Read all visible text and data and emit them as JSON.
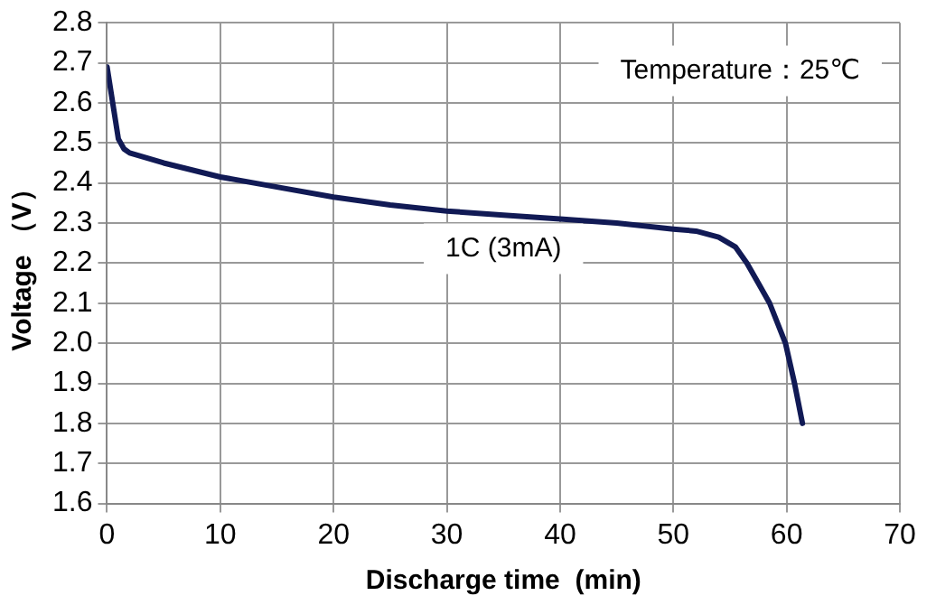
{
  "chart_data": {
    "type": "line",
    "xlabel": "Discharge time  (min)",
    "ylabel": "Voltage （V）",
    "annotations": [
      "Temperature：25℃",
      "1C (3mA)"
    ],
    "series": [
      {
        "color": "#111a55",
        "x": [
          0,
          0.5,
          1,
          1.5,
          2,
          5,
          10,
          15,
          20,
          25,
          30,
          35,
          40,
          45,
          50,
          52,
          54,
          55.5,
          56.5,
          57.5,
          58.5,
          59.9,
          60.7,
          61.4
        ],
        "values": [
          2.69,
          2.6,
          2.51,
          2.485,
          2.475,
          2.45,
          2.415,
          2.39,
          2.365,
          2.345,
          2.33,
          2.32,
          2.31,
          2.3,
          2.285,
          2.28,
          2.265,
          2.24,
          2.2,
          2.15,
          2.1,
          2.0,
          1.9,
          1.8
        ]
      }
    ],
    "xlim": [
      0,
      70
    ],
    "xticks": [
      0,
      10,
      20,
      30,
      40,
      50,
      60,
      70
    ],
    "ylim": [
      1.6,
      2.8
    ],
    "yticks": [
      1.6,
      1.7,
      1.8,
      1.9,
      {
        "value": 2,
        "label": "2.0"
      },
      2.1,
      2.2,
      2.3,
      2.4,
      2.5,
      2.6,
      2.7,
      2.8
    ],
    "grid": true,
    "legend": false,
    "marker": "none",
    "line_style": "solid"
  }
}
